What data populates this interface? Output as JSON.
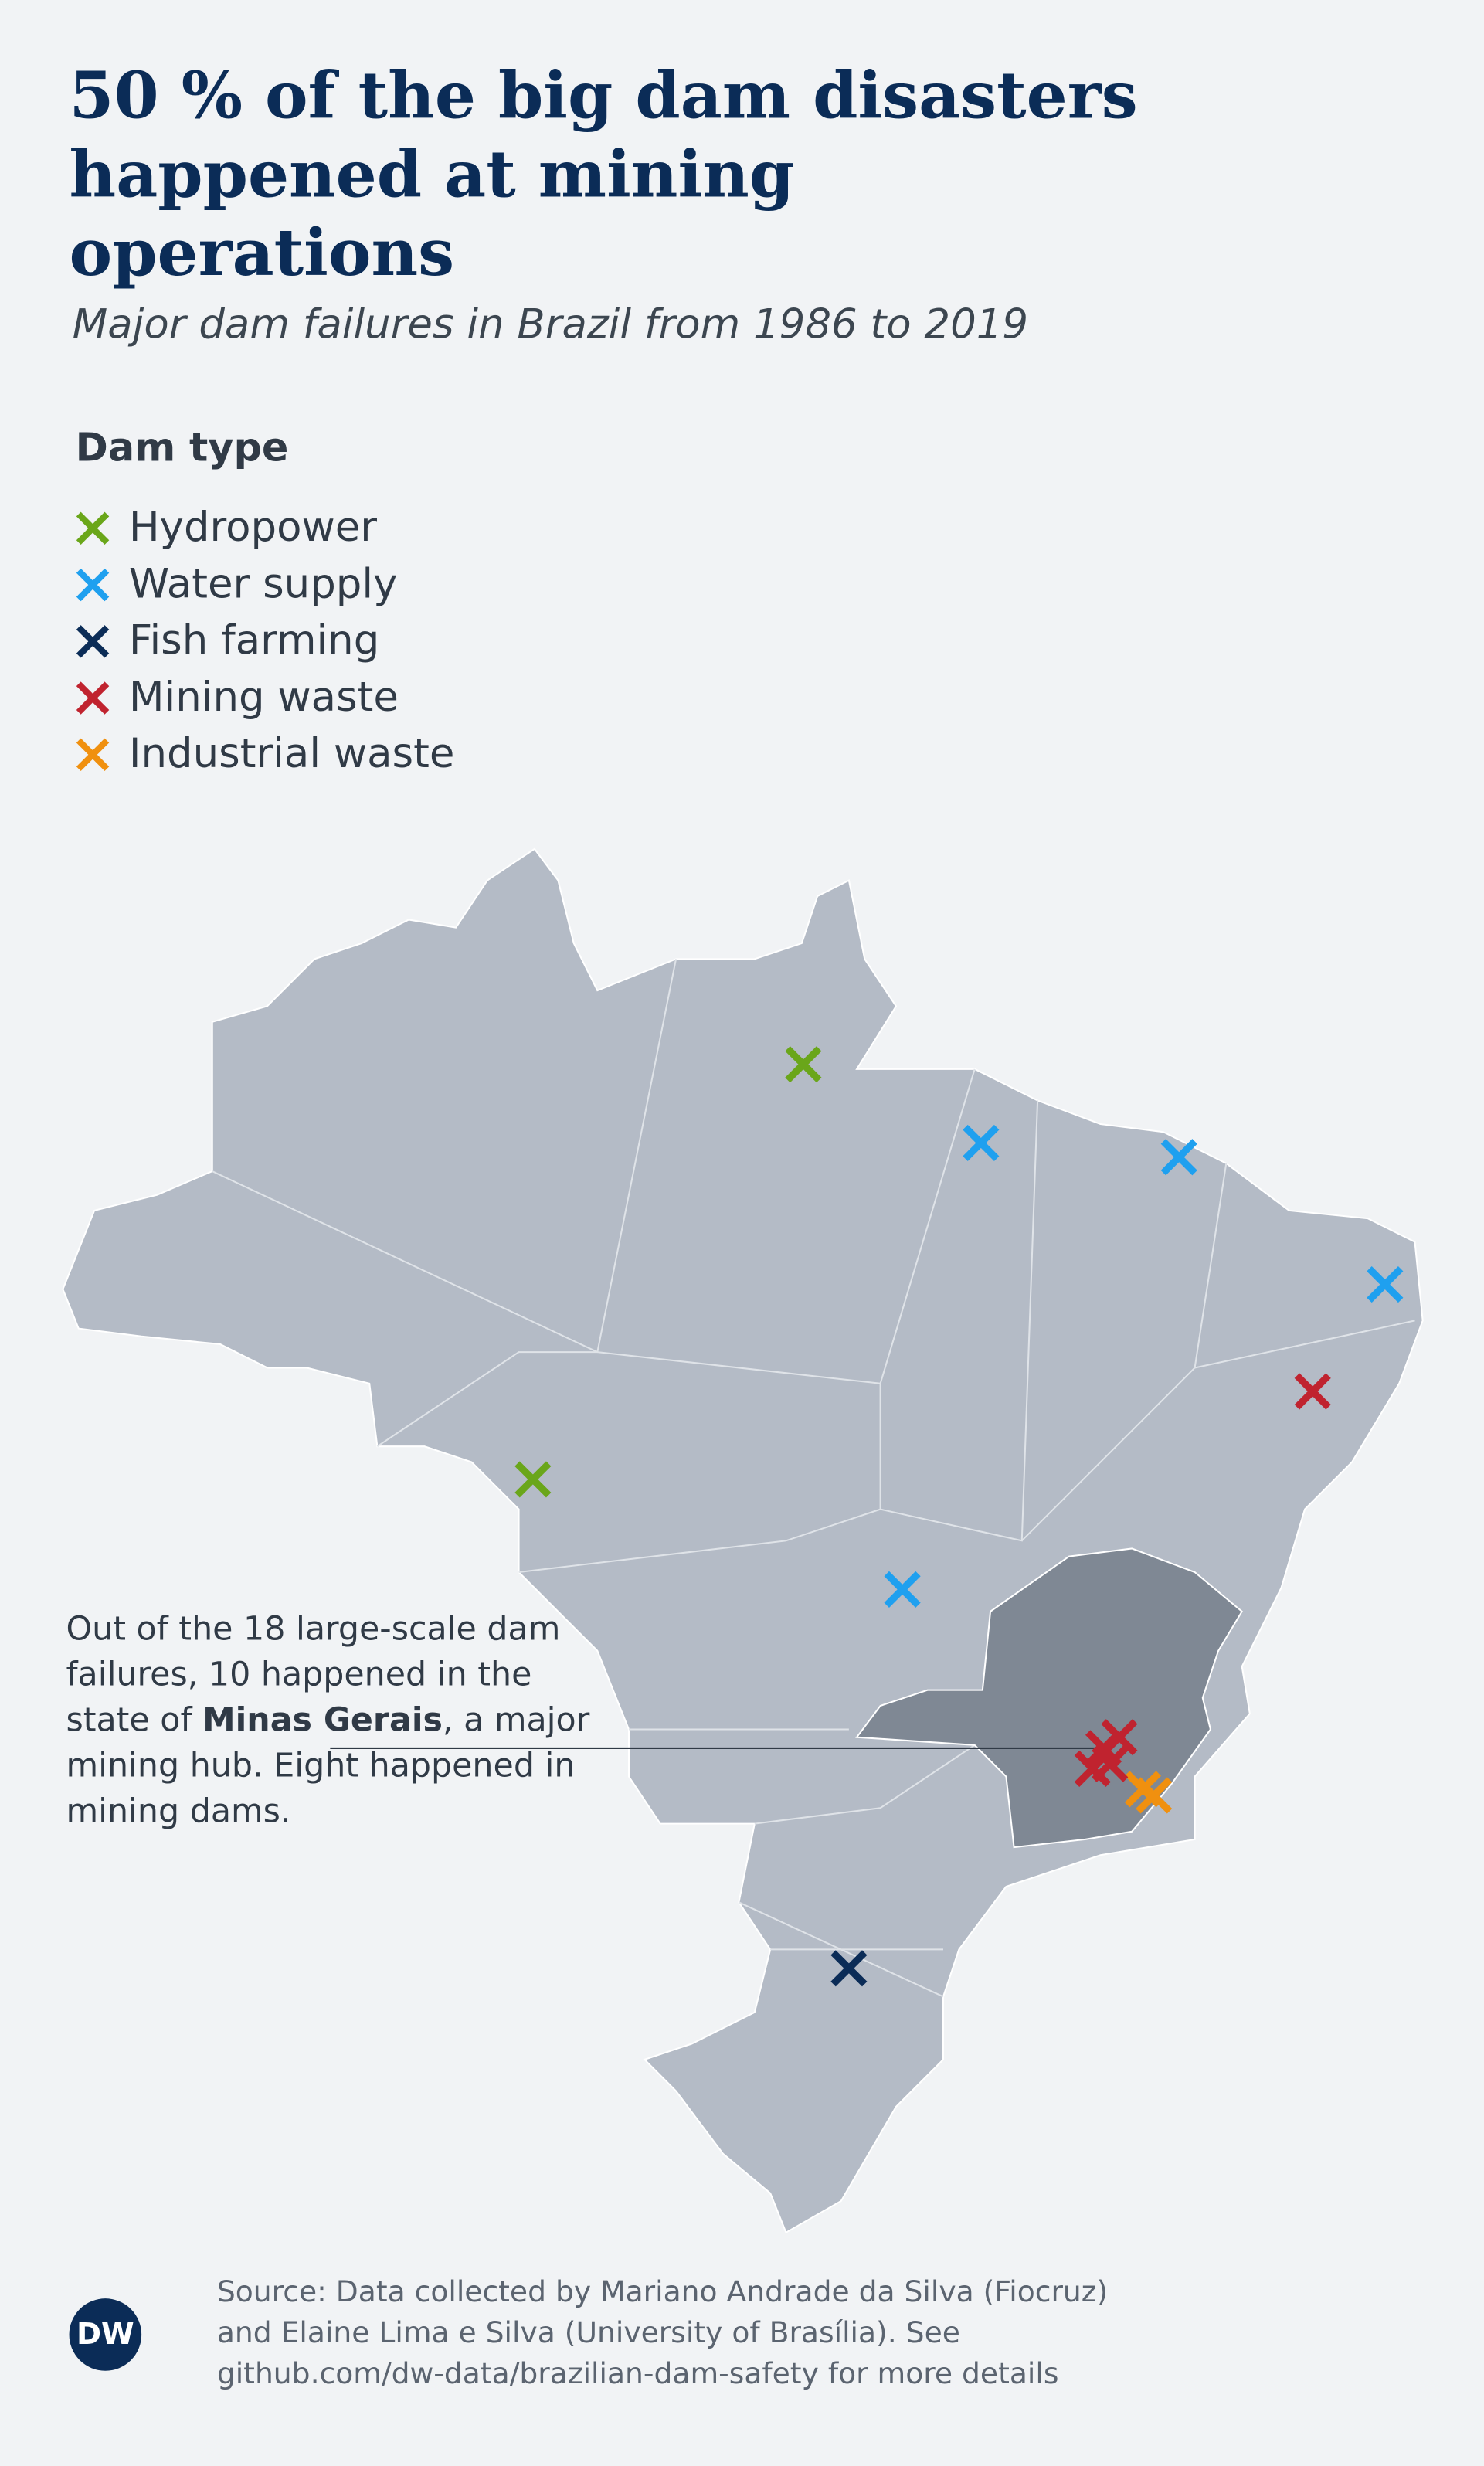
{
  "title": "50 % of the big dam disasters happened at mining operations",
  "subtitle": "Major dam failures in Brazil from 1986 to 2019",
  "legend": {
    "title": "Dam type",
    "items": [
      {
        "label": "Hydropower",
        "color": "#6aa61a"
      },
      {
        "label": "Water supply",
        "color": "#1fa0ef"
      },
      {
        "label": "Fish farming",
        "color": "#0b2c57"
      },
      {
        "label": "Mining waste",
        "color": "#c0232f"
      },
      {
        "label": "Industrial waste",
        "color": "#f0900f"
      }
    ]
  },
  "annotation": [
    "Out of the 18 large-scale dam failures, 10 happened in the state of ",
    "Minas Gerais",
    ", a major mining hub. Eight happened in mining dams."
  ],
  "source": [
    "Source: Data collected by Mariano Andrade da Silva (Fiocruz)",
    "and Elaine Lima e Silva (University of Brasília). See",
    "github.com/dw-data/brazilian-dam-safety for more details"
  ],
  "logo": "DW"
}
